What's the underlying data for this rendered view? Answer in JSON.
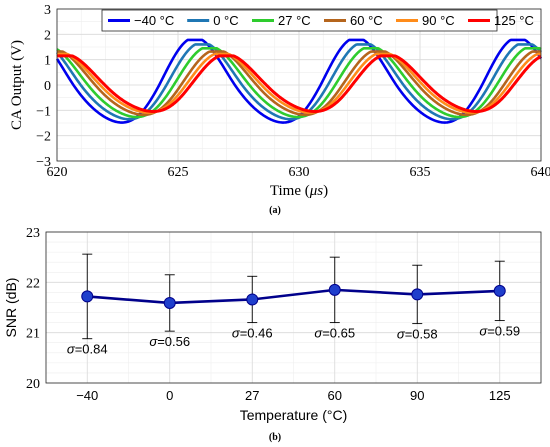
{
  "chart_data": [
    {
      "type": "line",
      "panel_label": "(a)",
      "xlabel_prefix": "Time (",
      "xlabel_unit": "μs",
      "xlabel_suffix": ")",
      "ylabel": "CA Output (V)",
      "xlim": [
        620,
        640
      ],
      "ylim": [
        -3,
        3
      ],
      "x_ticks": [
        620,
        625,
        630,
        635,
        640
      ],
      "y_ticks": [
        -3,
        -2,
        -1,
        0,
        1,
        2,
        3
      ],
      "grid": true,
      "legend_position": "top",
      "waveform_period_us": 6.67,
      "series": [
        {
          "name": "−40 °C",
          "color": "#0000ee",
          "amplitude_high": 1.78,
          "amplitude_low": -1.7,
          "peak_time_us": 625.8
        },
        {
          "name": "0 °C",
          "color": "#1f77b4",
          "amplitude_high": 1.6,
          "amplitude_low": -1.55,
          "peak_time_us": 626.1
        },
        {
          "name": "27 °C",
          "color": "#2ecc2e",
          "amplitude_high": 1.45,
          "amplitude_low": -1.45,
          "peak_time_us": 626.4
        },
        {
          "name": "60 °C",
          "color": "#b5651d",
          "amplitude_high": 1.32,
          "amplitude_low": -1.35,
          "peak_time_us": 626.7
        },
        {
          "name": "90 °C",
          "color": "#ff8c1a",
          "amplitude_high": 1.22,
          "amplitude_low": -1.25,
          "peak_time_us": 626.9
        },
        {
          "name": "125 °C",
          "color": "#ff0000",
          "amplitude_high": 1.15,
          "amplitude_low": -1.2,
          "peak_time_us": 627.1
        }
      ]
    },
    {
      "type": "scatter",
      "panel_label": "(b)",
      "xlabel": "Temperature (°C)",
      "ylabel": "SNR (dB)",
      "categories": [
        "-40",
        "0",
        "27",
        "60",
        "90",
        "125"
      ],
      "ylim": [
        20,
        23
      ],
      "y_ticks": [
        20,
        21,
        22,
        23
      ],
      "grid": true,
      "line_color": "#00008b",
      "marker_color": "#1f3fcc",
      "series": [
        {
          "values": [
            21.72,
            21.59,
            21.66,
            21.85,
            21.76,
            21.83
          ],
          "error": [
            0.84,
            0.56,
            0.46,
            0.65,
            0.58,
            0.59
          ],
          "sigma_labels": [
            "σ=0.84",
            "σ=0.56",
            "σ=0.46",
            "σ=0.65",
            "σ=0.58",
            "σ=0.59"
          ]
        }
      ]
    }
  ]
}
